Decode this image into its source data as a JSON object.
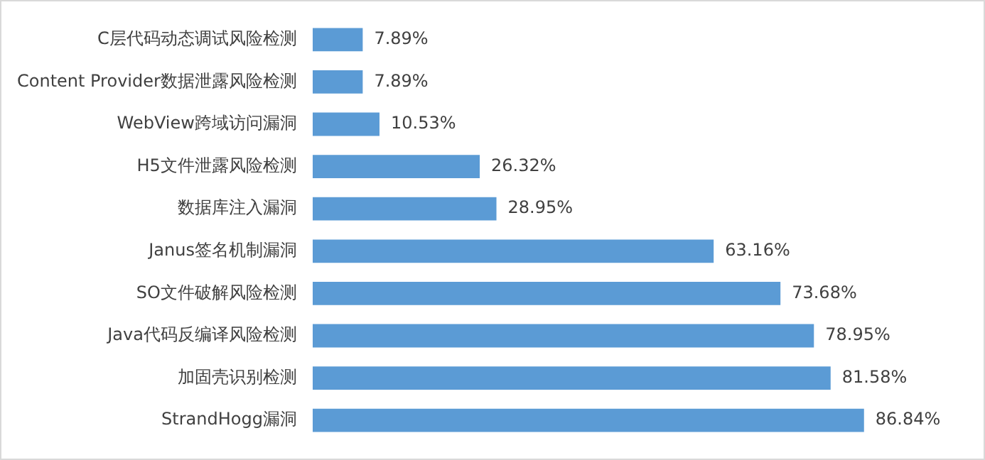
{
  "chart_data": {
    "type": "bar",
    "orientation": "horizontal",
    "categories": [
      "C层代码动态调试风险检测",
      "Content Provider数据泄露风险检测",
      "WebView跨域访问漏洞",
      "H5文件泄露风险检测",
      "数据库注入漏洞",
      "Janus签名机制漏洞",
      "SO文件破解风险检测",
      "Java代码反编译风险检测",
      "加固壳识别检测",
      "StrandHogg漏洞"
    ],
    "values": [
      7.89,
      7.89,
      10.53,
      26.32,
      28.95,
      63.16,
      73.68,
      78.95,
      81.58,
      86.84
    ],
    "value_labels": [
      "7.89%",
      "7.89%",
      "10.53%",
      "26.32%",
      "28.95%",
      "63.16%",
      "73.68%",
      "78.95%",
      "81.58%",
      "86.84%"
    ],
    "color": "#5b9bd5",
    "tick_labels": "y"
  }
}
